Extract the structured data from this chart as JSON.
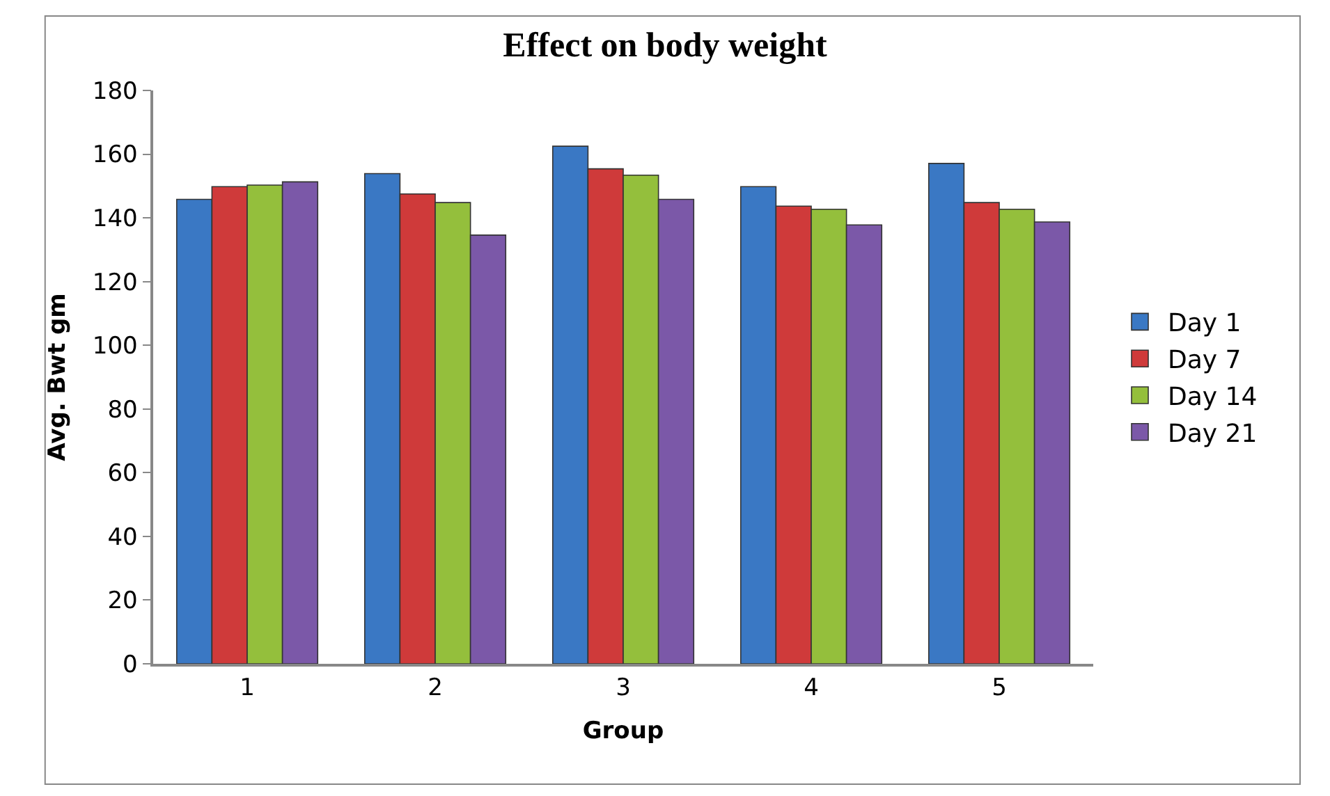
{
  "chart_data": {
    "type": "bar",
    "title": "Effect on body weight",
    "xlabel": "Group",
    "ylabel": "Avg. Bwt gm",
    "categories": [
      "1",
      "2",
      "3",
      "4",
      "5"
    ],
    "series": [
      {
        "name": "Day 1",
        "color": "#3a78c4",
        "values": [
          145.8,
          153.9,
          162.5,
          149.8,
          157.1
        ]
      },
      {
        "name": "Day 7",
        "color": "#cf3a3a",
        "values": [
          149.8,
          147.5,
          155.4,
          143.7,
          144.8
        ]
      },
      {
        "name": "Day 14",
        "color": "#94bf3c",
        "values": [
          150.3,
          144.8,
          153.4,
          142.7,
          142.7
        ]
      },
      {
        "name": "Day 21",
        "color": "#7b58a8",
        "values": [
          151.3,
          134.6,
          145.8,
          137.8,
          138.7
        ]
      }
    ],
    "ylim": [
      0,
      180
    ],
    "yticks": [
      0,
      20,
      40,
      60,
      80,
      100,
      120,
      140,
      160,
      180
    ],
    "legend": "right"
  }
}
